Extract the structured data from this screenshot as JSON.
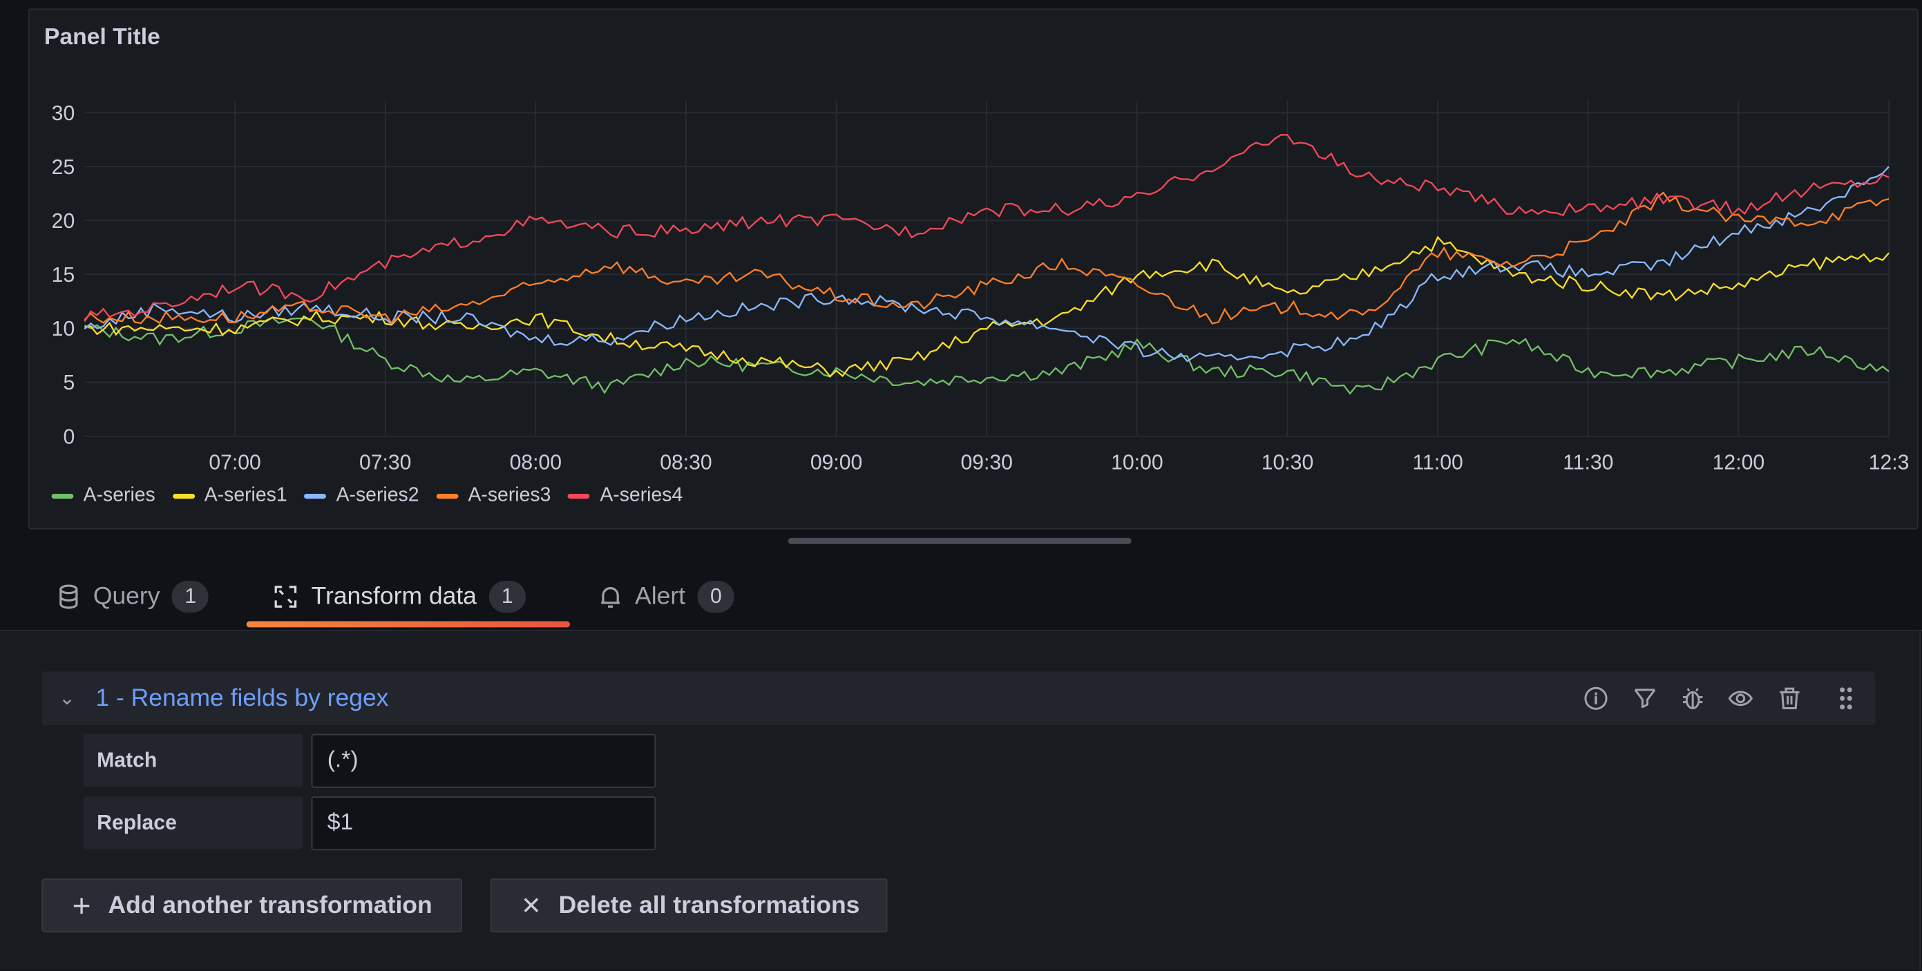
{
  "panel": {
    "title": "Panel Title"
  },
  "chart_data": {
    "type": "line",
    "title": "Panel Title",
    "x": [
      "06:30",
      "06:45",
      "07:00",
      "07:15",
      "07:30",
      "07:45",
      "08:00",
      "08:15",
      "08:30",
      "08:45",
      "09:00",
      "09:15",
      "09:30",
      "09:45",
      "10:00",
      "10:15",
      "10:30",
      "10:45",
      "11:00",
      "11:15",
      "11:30",
      "11:45",
      "12:00",
      "12:15",
      "12:30"
    ],
    "xticks": [
      "07:00",
      "07:30",
      "08:00",
      "08:30",
      "09:00",
      "09:30",
      "10:00",
      "10:30",
      "11:00",
      "11:30",
      "12:00",
      "12:3"
    ],
    "yticks": [
      "0",
      "5",
      "10",
      "15",
      "20",
      "25",
      "30"
    ],
    "ylim": [
      0,
      30
    ],
    "grid": true,
    "legend": "bottom-left",
    "series": [
      {
        "name": "A-series",
        "color": "#73bf69",
        "values": [
          10,
          9,
          10,
          11,
          7,
          5,
          6,
          4.5,
          7,
          6.5,
          6,
          5,
          5.5,
          6,
          8.5,
          6,
          6,
          4,
          7,
          9,
          6,
          6,
          7,
          8,
          6
        ]
      },
      {
        "name": "A-series1",
        "color": "#fade2a",
        "values": [
          10,
          10,
          10,
          11,
          11,
          10,
          11,
          9,
          8,
          7,
          6,
          7,
          10,
          11,
          15,
          16,
          13,
          15,
          18,
          15,
          14,
          13,
          14,
          16,
          17
        ]
      },
      {
        "name": "A-series2",
        "color": "#8ab8ff",
        "values": [
          10,
          12,
          11,
          12,
          11,
          11,
          9,
          9,
          11,
          12,
          13,
          12,
          11,
          10,
          8,
          7,
          8,
          9,
          15,
          16,
          15,
          16,
          19,
          21,
          25
        ]
      },
      {
        "name": "A-series3",
        "color": "#ff7f2a",
        "values": [
          11,
          11,
          11,
          12,
          11,
          12,
          14,
          16,
          14,
          15,
          13,
          12,
          14,
          16,
          14,
          11,
          12,
          11,
          17,
          16,
          18,
          22,
          20,
          20,
          22
        ]
      },
      {
        "name": "A-series4",
        "color": "#f2495c",
        "values": [
          11,
          12,
          14,
          13,
          16,
          18,
          20,
          19,
          19,
          20,
          20,
          19,
          21,
          21,
          22,
          25,
          28,
          24,
          23,
          21,
          21,
          22,
          21,
          23,
          24
        ]
      }
    ]
  },
  "tabs": [
    {
      "label": "Query",
      "count": "1",
      "icon": "database-icon"
    },
    {
      "label": "Transform data",
      "count": "1",
      "icon": "transform-icon"
    },
    {
      "label": "Alert",
      "count": "0",
      "icon": "bell-icon"
    }
  ],
  "transformation": {
    "title": "1 - Rename fields by regex",
    "icons": [
      "info-icon",
      "filter-icon",
      "bug-icon",
      "eye-icon",
      "trash-icon",
      "drag-handle-icon"
    ],
    "fields": [
      {
        "label": "Match",
        "value": "(.*)"
      },
      {
        "label": "Replace",
        "value": "$1"
      }
    ]
  },
  "buttons": {
    "add": "Add another transformation",
    "delete": "Delete all transformations"
  }
}
